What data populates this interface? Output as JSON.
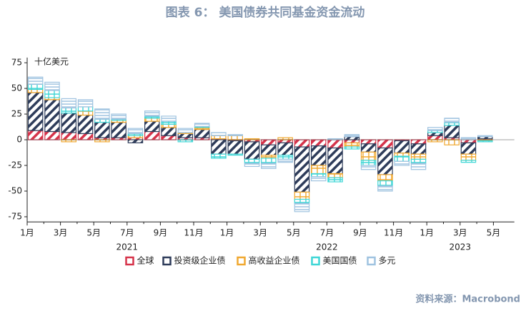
{
  "chart_data": {
    "type": "stacked_bar",
    "title": "图表 6： 美国债券共同基金资金流动",
    "y_axis_label": "十亿美元",
    "source": "资料来源：Macrobond",
    "categories": [
      "1月",
      null,
      "3月",
      null,
      "5月",
      null,
      "7月",
      null,
      "9月",
      null,
      "11月",
      null,
      "1月",
      null,
      "3月",
      null,
      "5月",
      null,
      "7月",
      null,
      "9月",
      null,
      "11月",
      null,
      "1月",
      null,
      "3月",
      null,
      "5月"
    ],
    "year_labels": [
      "2021",
      "2022",
      "2023"
    ],
    "ylim": [
      -80,
      80
    ],
    "yticks": [
      -75,
      -50,
      -25,
      0,
      25,
      50,
      75
    ],
    "legend": "bottom",
    "series": [
      {
        "name": "全球",
        "color": "#d6334a",
        "values": [
          9,
          8,
          7,
          6,
          2,
          2,
          2,
          8,
          4,
          2,
          2,
          1,
          -1,
          -2,
          -5,
          -3,
          -7,
          -6,
          -8,
          -3,
          -4,
          -8,
          -1,
          -4,
          4,
          2,
          -3,
          1,
          null
        ]
      },
      {
        "name": "投资级企业债",
        "color": "#2e3c5a",
        "values": [
          37,
          31,
          19,
          18,
          15,
          15,
          -3,
          10,
          8,
          4,
          8,
          -14,
          -13,
          -17,
          -10,
          -12,
          -44,
          -19,
          -25,
          3,
          -8,
          -26,
          -12,
          -10,
          3,
          12,
          -11,
          2,
          null
        ]
      },
      {
        "name": "高收益企业债",
        "color": "#f0a830",
        "values": [
          3,
          2,
          -2,
          4,
          -2,
          2,
          2,
          3,
          3,
          1,
          2,
          3,
          4,
          1,
          -3,
          2,
          -7,
          -8,
          -4,
          -4,
          -8,
          -6,
          -3,
          -5,
          -2,
          -5,
          -6,
          -1,
          null
        ]
      },
      {
        "name": "美国国债",
        "color": "#3fd6d6",
        "values": [
          5,
          7,
          5,
          4,
          3,
          1,
          2,
          2,
          3,
          -2,
          1,
          -4,
          -1,
          -4,
          -5,
          -4,
          -4,
          -3,
          -4,
          -2,
          -5,
          -5,
          -5,
          -4,
          2,
          3,
          -2,
          -1,
          null
        ]
      },
      {
        "name": "多元",
        "color": "#9fc3e0",
        "values": [
          7,
          8,
          9,
          7,
          10,
          5,
          5,
          5,
          5,
          4,
          3,
          3,
          1,
          -3,
          -5,
          -3,
          -8,
          -4,
          1,
          2,
          -4,
          -5,
          -4,
          -6,
          3,
          4,
          2,
          1,
          null
        ]
      }
    ]
  }
}
